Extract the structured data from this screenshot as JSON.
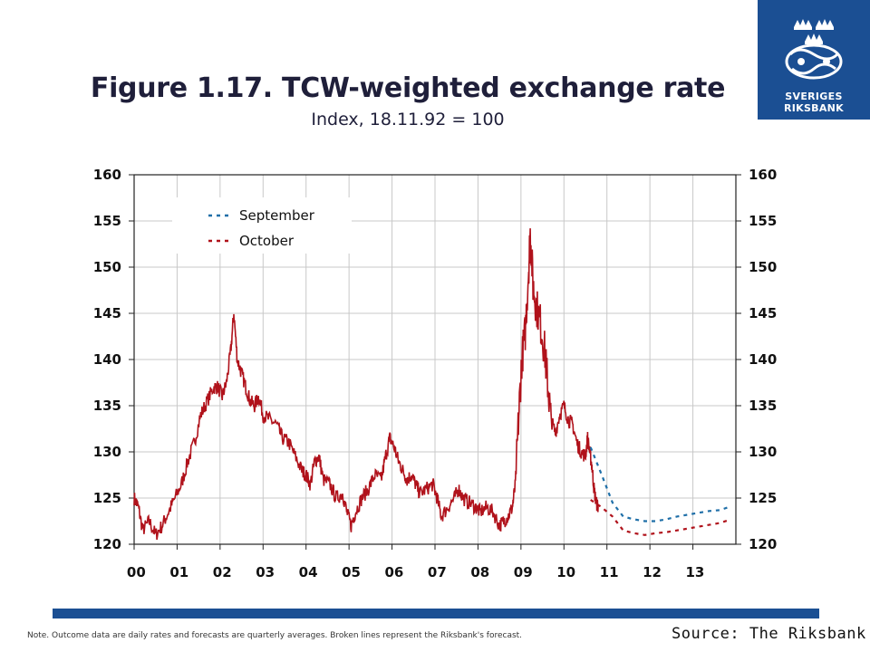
{
  "header": {
    "title": "Figure 1.17. TCW-weighted exchange rate",
    "subtitle": "Index, 18.11.92 = 100"
  },
  "logo": {
    "line1": "SVERIGES",
    "line2": "RIKSBANK"
  },
  "footer": {
    "note": "Note. Outcome data are daily rates and forecasts are quarterly averages. Broken lines represent the Riksbank's forecast.",
    "source": "Source: The Riksbank"
  },
  "colors": {
    "outcome": "#b0121b",
    "september": "#1f6fa8",
    "october": "#b0121b",
    "brand": "#1b4f93",
    "grid": "#c8c8c8"
  },
  "chart_data": {
    "type": "line",
    "title": "Figure 1.17. TCW-weighted exchange rate",
    "subtitle": "Index, 18.11.92 = 100",
    "xlabel": "",
    "ylabel": "",
    "xlim": [
      2000,
      2014
    ],
    "ylim": [
      120,
      160
    ],
    "x_tick_labels": [
      "00",
      "01",
      "02",
      "03",
      "04",
      "05",
      "06",
      "07",
      "08",
      "09",
      "10",
      "11",
      "12",
      "13"
    ],
    "y_ticks": [
      120,
      125,
      130,
      135,
      140,
      145,
      150,
      155,
      160
    ],
    "y_axes": "left-and-right",
    "grid": true,
    "legend_position": "top-left",
    "legend": [
      "September",
      "October"
    ],
    "series": [
      {
        "name": "",
        "style": "solid",
        "points": [
          [
            2000.0,
            125.0
          ],
          [
            2000.1,
            124.0
          ],
          [
            2000.2,
            121.5
          ],
          [
            2000.35,
            122.5
          ],
          [
            2000.5,
            121.0
          ],
          [
            2000.65,
            122.0
          ],
          [
            2000.8,
            123.5
          ],
          [
            2000.95,
            125.0
          ],
          [
            2001.1,
            126.5
          ],
          [
            2001.25,
            129.0
          ],
          [
            2001.4,
            131.0
          ],
          [
            2001.55,
            134.0
          ],
          [
            2001.7,
            135.5
          ],
          [
            2001.85,
            137.0
          ],
          [
            2001.95,
            137.0
          ],
          [
            2002.05,
            136.0
          ],
          [
            2002.15,
            137.5
          ],
          [
            2002.25,
            141.0
          ],
          [
            2002.32,
            145.0
          ],
          [
            2002.4,
            140.0
          ],
          [
            2002.5,
            138.5
          ],
          [
            2002.6,
            137.0
          ],
          [
            2002.7,
            135.5
          ],
          [
            2002.8,
            135.0
          ],
          [
            2002.9,
            136.0
          ],
          [
            2003.0,
            134.0
          ],
          [
            2003.15,
            133.5
          ],
          [
            2003.3,
            133.0
          ],
          [
            2003.45,
            131.5
          ],
          [
            2003.6,
            131.0
          ],
          [
            2003.75,
            129.5
          ],
          [
            2003.9,
            128.0
          ],
          [
            2004.0,
            127.5
          ],
          [
            2004.1,
            126.5
          ],
          [
            2004.2,
            129.0
          ],
          [
            2004.3,
            129.5
          ],
          [
            2004.4,
            127.0
          ],
          [
            2004.55,
            126.5
          ],
          [
            2004.7,
            125.0
          ],
          [
            2004.85,
            125.5
          ],
          [
            2004.95,
            123.5
          ],
          [
            2005.05,
            122.0
          ],
          [
            2005.15,
            123.5
          ],
          [
            2005.3,
            125.0
          ],
          [
            2005.45,
            126.0
          ],
          [
            2005.6,
            127.5
          ],
          [
            2005.75,
            127.0
          ],
          [
            2005.85,
            129.5
          ],
          [
            2005.95,
            131.5
          ],
          [
            2006.05,
            130.5
          ],
          [
            2006.15,
            129.0
          ],
          [
            2006.25,
            128.0
          ],
          [
            2006.35,
            127.0
          ],
          [
            2006.45,
            127.5
          ],
          [
            2006.55,
            126.5
          ],
          [
            2006.65,
            125.5
          ],
          [
            2006.8,
            126.0
          ],
          [
            2006.95,
            126.5
          ],
          [
            2007.05,
            125.0
          ],
          [
            2007.15,
            123.0
          ],
          [
            2007.3,
            124.0
          ],
          [
            2007.45,
            125.0
          ],
          [
            2007.55,
            126.0
          ],
          [
            2007.65,
            125.0
          ],
          [
            2007.8,
            124.5
          ],
          [
            2007.95,
            124.0
          ],
          [
            2008.05,
            123.5
          ],
          [
            2008.2,
            124.0
          ],
          [
            2008.35,
            123.5
          ],
          [
            2008.5,
            122.0
          ],
          [
            2008.6,
            122.5
          ],
          [
            2008.7,
            123.0
          ],
          [
            2008.8,
            124.0
          ],
          [
            2008.87,
            126.5
          ],
          [
            2008.95,
            134.0
          ],
          [
            2009.02,
            140.0
          ],
          [
            2009.1,
            143.0
          ],
          [
            2009.18,
            150.0
          ],
          [
            2009.22,
            154.0
          ],
          [
            2009.28,
            148.0
          ],
          [
            2009.35,
            146.0
          ],
          [
            2009.45,
            144.0
          ],
          [
            2009.55,
            141.0
          ],
          [
            2009.62,
            137.5
          ],
          [
            2009.7,
            133.5
          ],
          [
            2009.8,
            132.0
          ],
          [
            2009.9,
            134.0
          ],
          [
            2010.0,
            135.0
          ],
          [
            2010.1,
            133.5
          ],
          [
            2010.2,
            133.0
          ],
          [
            2010.3,
            131.0
          ],
          [
            2010.4,
            130.0
          ],
          [
            2010.5,
            129.5
          ],
          [
            2010.55,
            131.5
          ],
          [
            2010.6,
            130.0
          ],
          [
            2010.65,
            128.5
          ],
          [
            2010.7,
            126.0
          ],
          [
            2010.75,
            124.5
          ],
          [
            2010.8,
            124.0
          ]
        ]
      },
      {
        "name": "September",
        "style": "dashed",
        "points": [
          [
            2010.62,
            130.5
          ],
          [
            2010.88,
            127.5
          ],
          [
            2011.13,
            124.5
          ],
          [
            2011.38,
            123.0
          ],
          [
            2011.63,
            122.7
          ],
          [
            2011.88,
            122.5
          ],
          [
            2012.13,
            122.5
          ],
          [
            2012.38,
            122.7
          ],
          [
            2012.63,
            123.0
          ],
          [
            2012.88,
            123.2
          ],
          [
            2013.13,
            123.4
          ],
          [
            2013.38,
            123.6
          ],
          [
            2013.63,
            123.7
          ],
          [
            2013.82,
            124.0
          ]
        ]
      },
      {
        "name": "October",
        "style": "dashed",
        "points": [
          [
            2010.62,
            124.8
          ],
          [
            2010.88,
            124.0
          ],
          [
            2011.13,
            123.0
          ],
          [
            2011.38,
            121.5
          ],
          [
            2011.63,
            121.2
          ],
          [
            2011.88,
            121.0
          ],
          [
            2012.13,
            121.2
          ],
          [
            2012.38,
            121.3
          ],
          [
            2012.63,
            121.5
          ],
          [
            2012.88,
            121.7
          ],
          [
            2013.13,
            121.9
          ],
          [
            2013.38,
            122.1
          ],
          [
            2013.63,
            122.3
          ],
          [
            2013.82,
            122.6
          ]
        ]
      }
    ]
  }
}
